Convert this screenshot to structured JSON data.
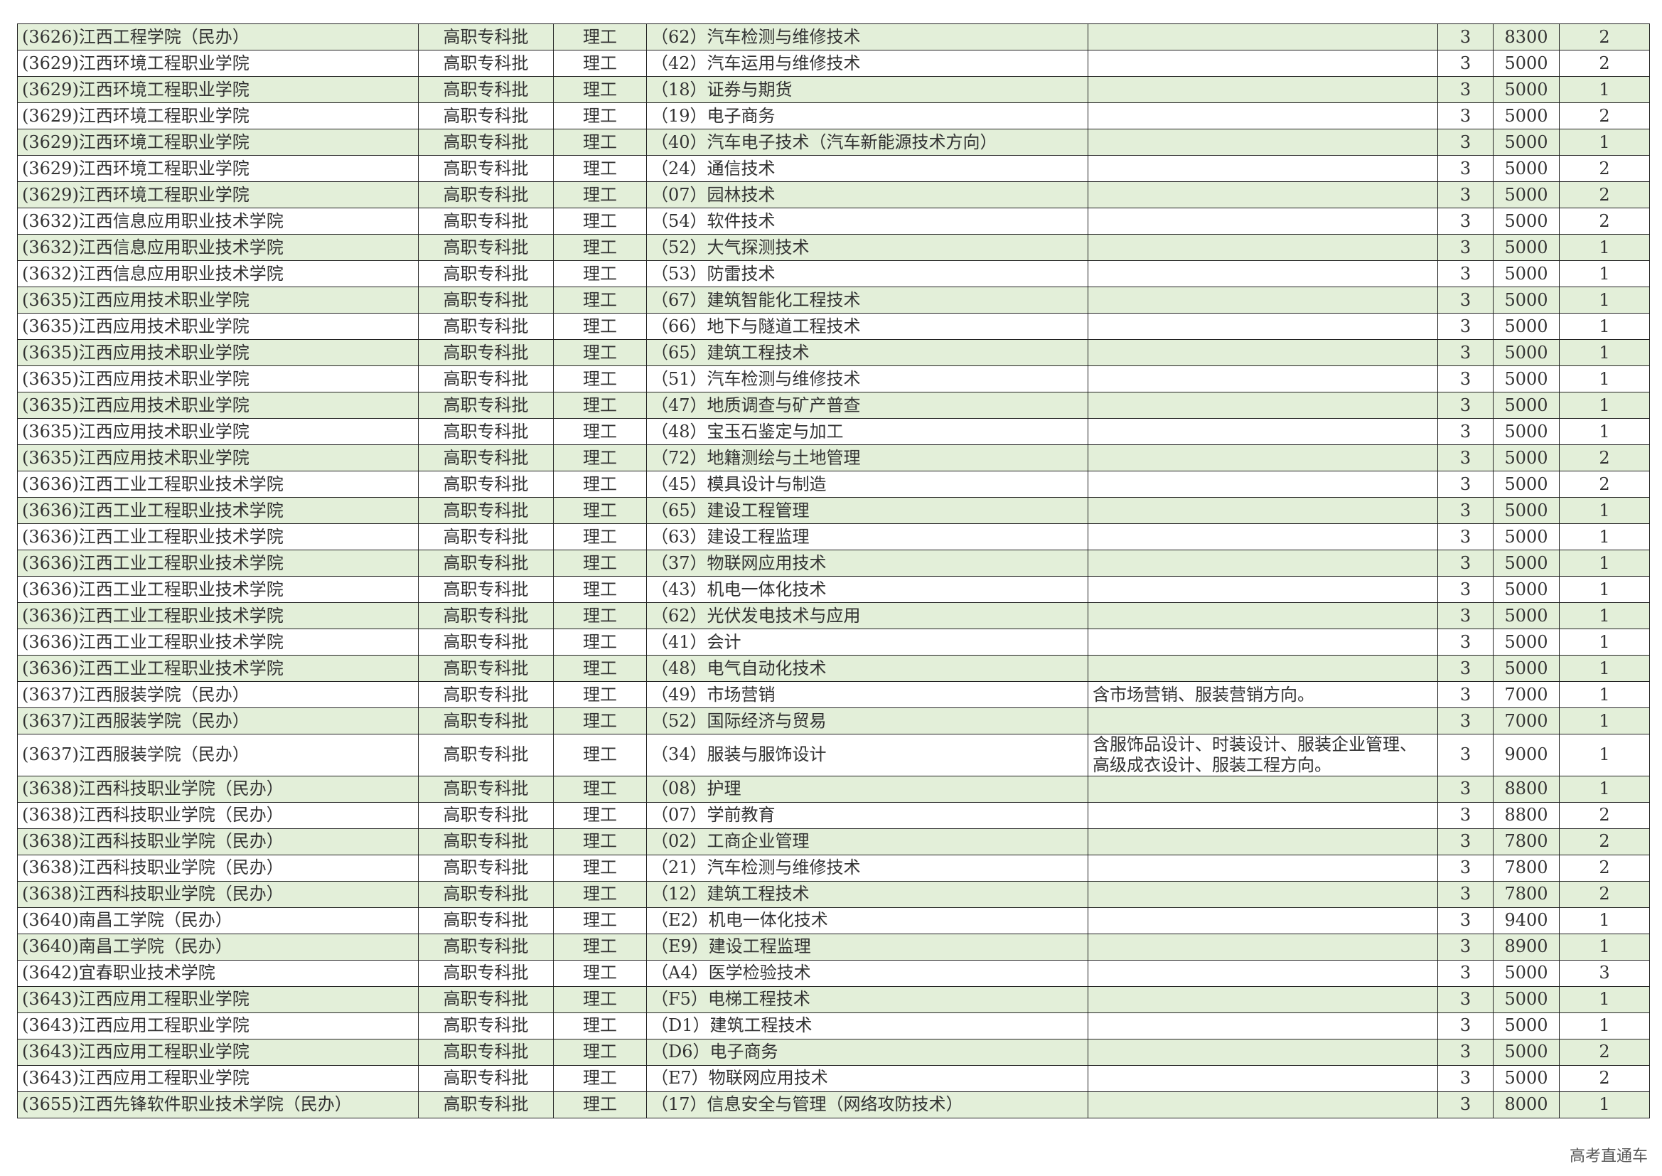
{
  "table": {
    "rows": [
      {
        "school": "(3626)江西工程学院（民办）",
        "batch": "高职专科批",
        "type": "理工",
        "major": "（62）汽车检测与维修技术",
        "years": 3,
        "fee": 8300,
        "count": 2
      },
      {
        "school": "(3629)江西环境工程职业学院",
        "batch": "高职专科批",
        "type": "理工",
        "major": "（42）汽车运用与维修技术",
        "years": 3,
        "fee": 5000,
        "count": 2
      },
      {
        "school": "(3629)江西环境工程职业学院",
        "batch": "高职专科批",
        "type": "理工",
        "major": "（18）证券与期货",
        "years": 3,
        "fee": 5000,
        "count": 1
      },
      {
        "school": "(3629)江西环境工程职业学院",
        "batch": "高职专科批",
        "type": "理工",
        "major": "（19）电子商务",
        "years": 3,
        "fee": 5000,
        "count": 2
      },
      {
        "school": "(3629)江西环境工程职业学院",
        "batch": "高职专科批",
        "type": "理工",
        "major": "（40）汽车电子技术（汽车新能源技术方向）",
        "years": 3,
        "fee": 5000,
        "count": 1
      },
      {
        "school": "(3629)江西环境工程职业学院",
        "batch": "高职专科批",
        "type": "理工",
        "major": "（24）通信技术",
        "years": 3,
        "fee": 5000,
        "count": 2
      },
      {
        "school": "(3629)江西环境工程职业学院",
        "batch": "高职专科批",
        "type": "理工",
        "major": "（07）园林技术",
        "years": 3,
        "fee": 5000,
        "count": 2
      },
      {
        "school": "(3632)江西信息应用职业技术学院",
        "batch": "高职专科批",
        "type": "理工",
        "major": "（54）软件技术",
        "years": 3,
        "fee": 5000,
        "count": 2
      },
      {
        "school": "(3632)江西信息应用职业技术学院",
        "batch": "高职专科批",
        "type": "理工",
        "major": "（52）大气探测技术",
        "years": 3,
        "fee": 5000,
        "count": 1
      },
      {
        "school": "(3632)江西信息应用职业技术学院",
        "batch": "高职专科批",
        "type": "理工",
        "major": "（53）防雷技术",
        "years": 3,
        "fee": 5000,
        "count": 1
      },
      {
        "school": "(3635)江西应用技术职业学院",
        "batch": "高职专科批",
        "type": "理工",
        "major": "（67）建筑智能化工程技术",
        "years": 3,
        "fee": 5000,
        "count": 1
      },
      {
        "school": "(3635)江西应用技术职业学院",
        "batch": "高职专科批",
        "type": "理工",
        "major": "（66）地下与隧道工程技术",
        "years": 3,
        "fee": 5000,
        "count": 1
      },
      {
        "school": "(3635)江西应用技术职业学院",
        "batch": "高职专科批",
        "type": "理工",
        "major": "（65）建筑工程技术",
        "years": 3,
        "fee": 5000,
        "count": 1
      },
      {
        "school": "(3635)江西应用技术职业学院",
        "batch": "高职专科批",
        "type": "理工",
        "major": "（51）汽车检测与维修技术",
        "years": 3,
        "fee": 5000,
        "count": 1
      },
      {
        "school": "(3635)江西应用技术职业学院",
        "batch": "高职专科批",
        "type": "理工",
        "major": "（47）地质调查与矿产普查",
        "years": 3,
        "fee": 5000,
        "count": 1
      },
      {
        "school": "(3635)江西应用技术职业学院",
        "batch": "高职专科批",
        "type": "理工",
        "major": "（48）宝玉石鉴定与加工",
        "years": 3,
        "fee": 5000,
        "count": 1
      },
      {
        "school": "(3635)江西应用技术职业学院",
        "batch": "高职专科批",
        "type": "理工",
        "major": "（72）地籍测绘与土地管理",
        "years": 3,
        "fee": 5000,
        "count": 2
      },
      {
        "school": "(3636)江西工业工程职业技术学院",
        "batch": "高职专科批",
        "type": "理工",
        "major": "（45）模具设计与制造",
        "years": 3,
        "fee": 5000,
        "count": 2
      },
      {
        "school": "(3636)江西工业工程职业技术学院",
        "batch": "高职专科批",
        "type": "理工",
        "major": "（65）建设工程管理",
        "years": 3,
        "fee": 5000,
        "count": 1
      },
      {
        "school": "(3636)江西工业工程职业技术学院",
        "batch": "高职专科批",
        "type": "理工",
        "major": "（63）建设工程监理",
        "years": 3,
        "fee": 5000,
        "count": 1
      },
      {
        "school": "(3636)江西工业工程职业技术学院",
        "batch": "高职专科批",
        "type": "理工",
        "major": "（37）物联网应用技术",
        "years": 3,
        "fee": 5000,
        "count": 1
      },
      {
        "school": "(3636)江西工业工程职业技术学院",
        "batch": "高职专科批",
        "type": "理工",
        "major": "（43）机电一体化技术",
        "years": 3,
        "fee": 5000,
        "count": 1
      },
      {
        "school": "(3636)江西工业工程职业技术学院",
        "batch": "高职专科批",
        "type": "理工",
        "major": "（62）光伏发电技术与应用",
        "years": 3,
        "fee": 5000,
        "count": 1
      },
      {
        "school": "(3636)江西工业工程职业技术学院",
        "batch": "高职专科批",
        "type": "理工",
        "major": "（41）会计",
        "years": 3,
        "fee": 5000,
        "count": 1
      },
      {
        "school": "(3636)江西工业工程职业技术学院",
        "batch": "高职专科批",
        "type": "理工",
        "major": "（48）电气自动化技术",
        "years": 3,
        "fee": 5000,
        "count": 1
      },
      {
        "school": "(3637)江西服装学院（民办）",
        "batch": "高职专科批",
        "type": "理工",
        "major": "（49）市场营销",
        "note": "含市场营销、服装营销方向。",
        "years": 3,
        "fee": 7000,
        "count": 1
      },
      {
        "school": "(3637)江西服装学院（民办）",
        "batch": "高职专科批",
        "type": "理工",
        "major": "（52）国际经济与贸易",
        "years": 3,
        "fee": 7000,
        "count": 1
      },
      {
        "school": "(3637)江西服装学院（民办）",
        "batch": "高职专科批",
        "type": "理工",
        "major": "（34）服装与服饰设计",
        "note": "含服饰品设计、时装设计、服装企业管理、高级成衣设计、服装工程方向。",
        "years": 3,
        "fee": 9000,
        "count": 1
      },
      {
        "school": "(3638)江西科技职业学院（民办）",
        "batch": "高职专科批",
        "type": "理工",
        "major": "（08）护理",
        "years": 3,
        "fee": 8800,
        "count": 1
      },
      {
        "school": "(3638)江西科技职业学院（民办）",
        "batch": "高职专科批",
        "type": "理工",
        "major": "（07）学前教育",
        "years": 3,
        "fee": 8800,
        "count": 2
      },
      {
        "school": "(3638)江西科技职业学院（民办）",
        "batch": "高职专科批",
        "type": "理工",
        "major": "（02）工商企业管理",
        "years": 3,
        "fee": 7800,
        "count": 2
      },
      {
        "school": "(3638)江西科技职业学院（民办）",
        "batch": "高职专科批",
        "type": "理工",
        "major": "（21）汽车检测与维修技术",
        "years": 3,
        "fee": 7800,
        "count": 2
      },
      {
        "school": "(3638)江西科技职业学院（民办）",
        "batch": "高职专科批",
        "type": "理工",
        "major": "（12）建筑工程技术",
        "years": 3,
        "fee": 7800,
        "count": 2
      },
      {
        "school": "(3640)南昌工学院（民办）",
        "batch": "高职专科批",
        "type": "理工",
        "major": "（E2）机电一体化技术",
        "years": 3,
        "fee": 9400,
        "count": 1
      },
      {
        "school": "(3640)南昌工学院（民办）",
        "batch": "高职专科批",
        "type": "理工",
        "major": "（E9）建设工程监理",
        "years": 3,
        "fee": 8900,
        "count": 1
      },
      {
        "school": "(3642)宜春职业技术学院",
        "batch": "高职专科批",
        "type": "理工",
        "major": "（A4）医学检验技术",
        "years": 3,
        "fee": 5000,
        "count": 3
      },
      {
        "school": "(3643)江西应用工程职业学院",
        "batch": "高职专科批",
        "type": "理工",
        "major": "（F5）电梯工程技术",
        "years": 3,
        "fee": 5000,
        "count": 1
      },
      {
        "school": "(3643)江西应用工程职业学院",
        "batch": "高职专科批",
        "type": "理工",
        "major": "（D1）建筑工程技术",
        "years": 3,
        "fee": 5000,
        "count": 1
      },
      {
        "school": "(3643)江西应用工程职业学院",
        "batch": "高职专科批",
        "type": "理工",
        "major": "（D6）电子商务",
        "years": 3,
        "fee": 5000,
        "count": 2
      },
      {
        "school": "(3643)江西应用工程职业学院",
        "batch": "高职专科批",
        "type": "理工",
        "major": "（E7）物联网应用技术",
        "years": 3,
        "fee": 5000,
        "count": 2
      },
      {
        "school": "(3655)江西先锋软件职业技术学院（民办）",
        "batch": "高职专科批",
        "type": "理工",
        "major": "（17）信息安全与管理（网络攻防技术）",
        "years": 3,
        "fee": 8000,
        "count": 1
      }
    ]
  },
  "footer": {
    "watermark": "高考直通车"
  }
}
